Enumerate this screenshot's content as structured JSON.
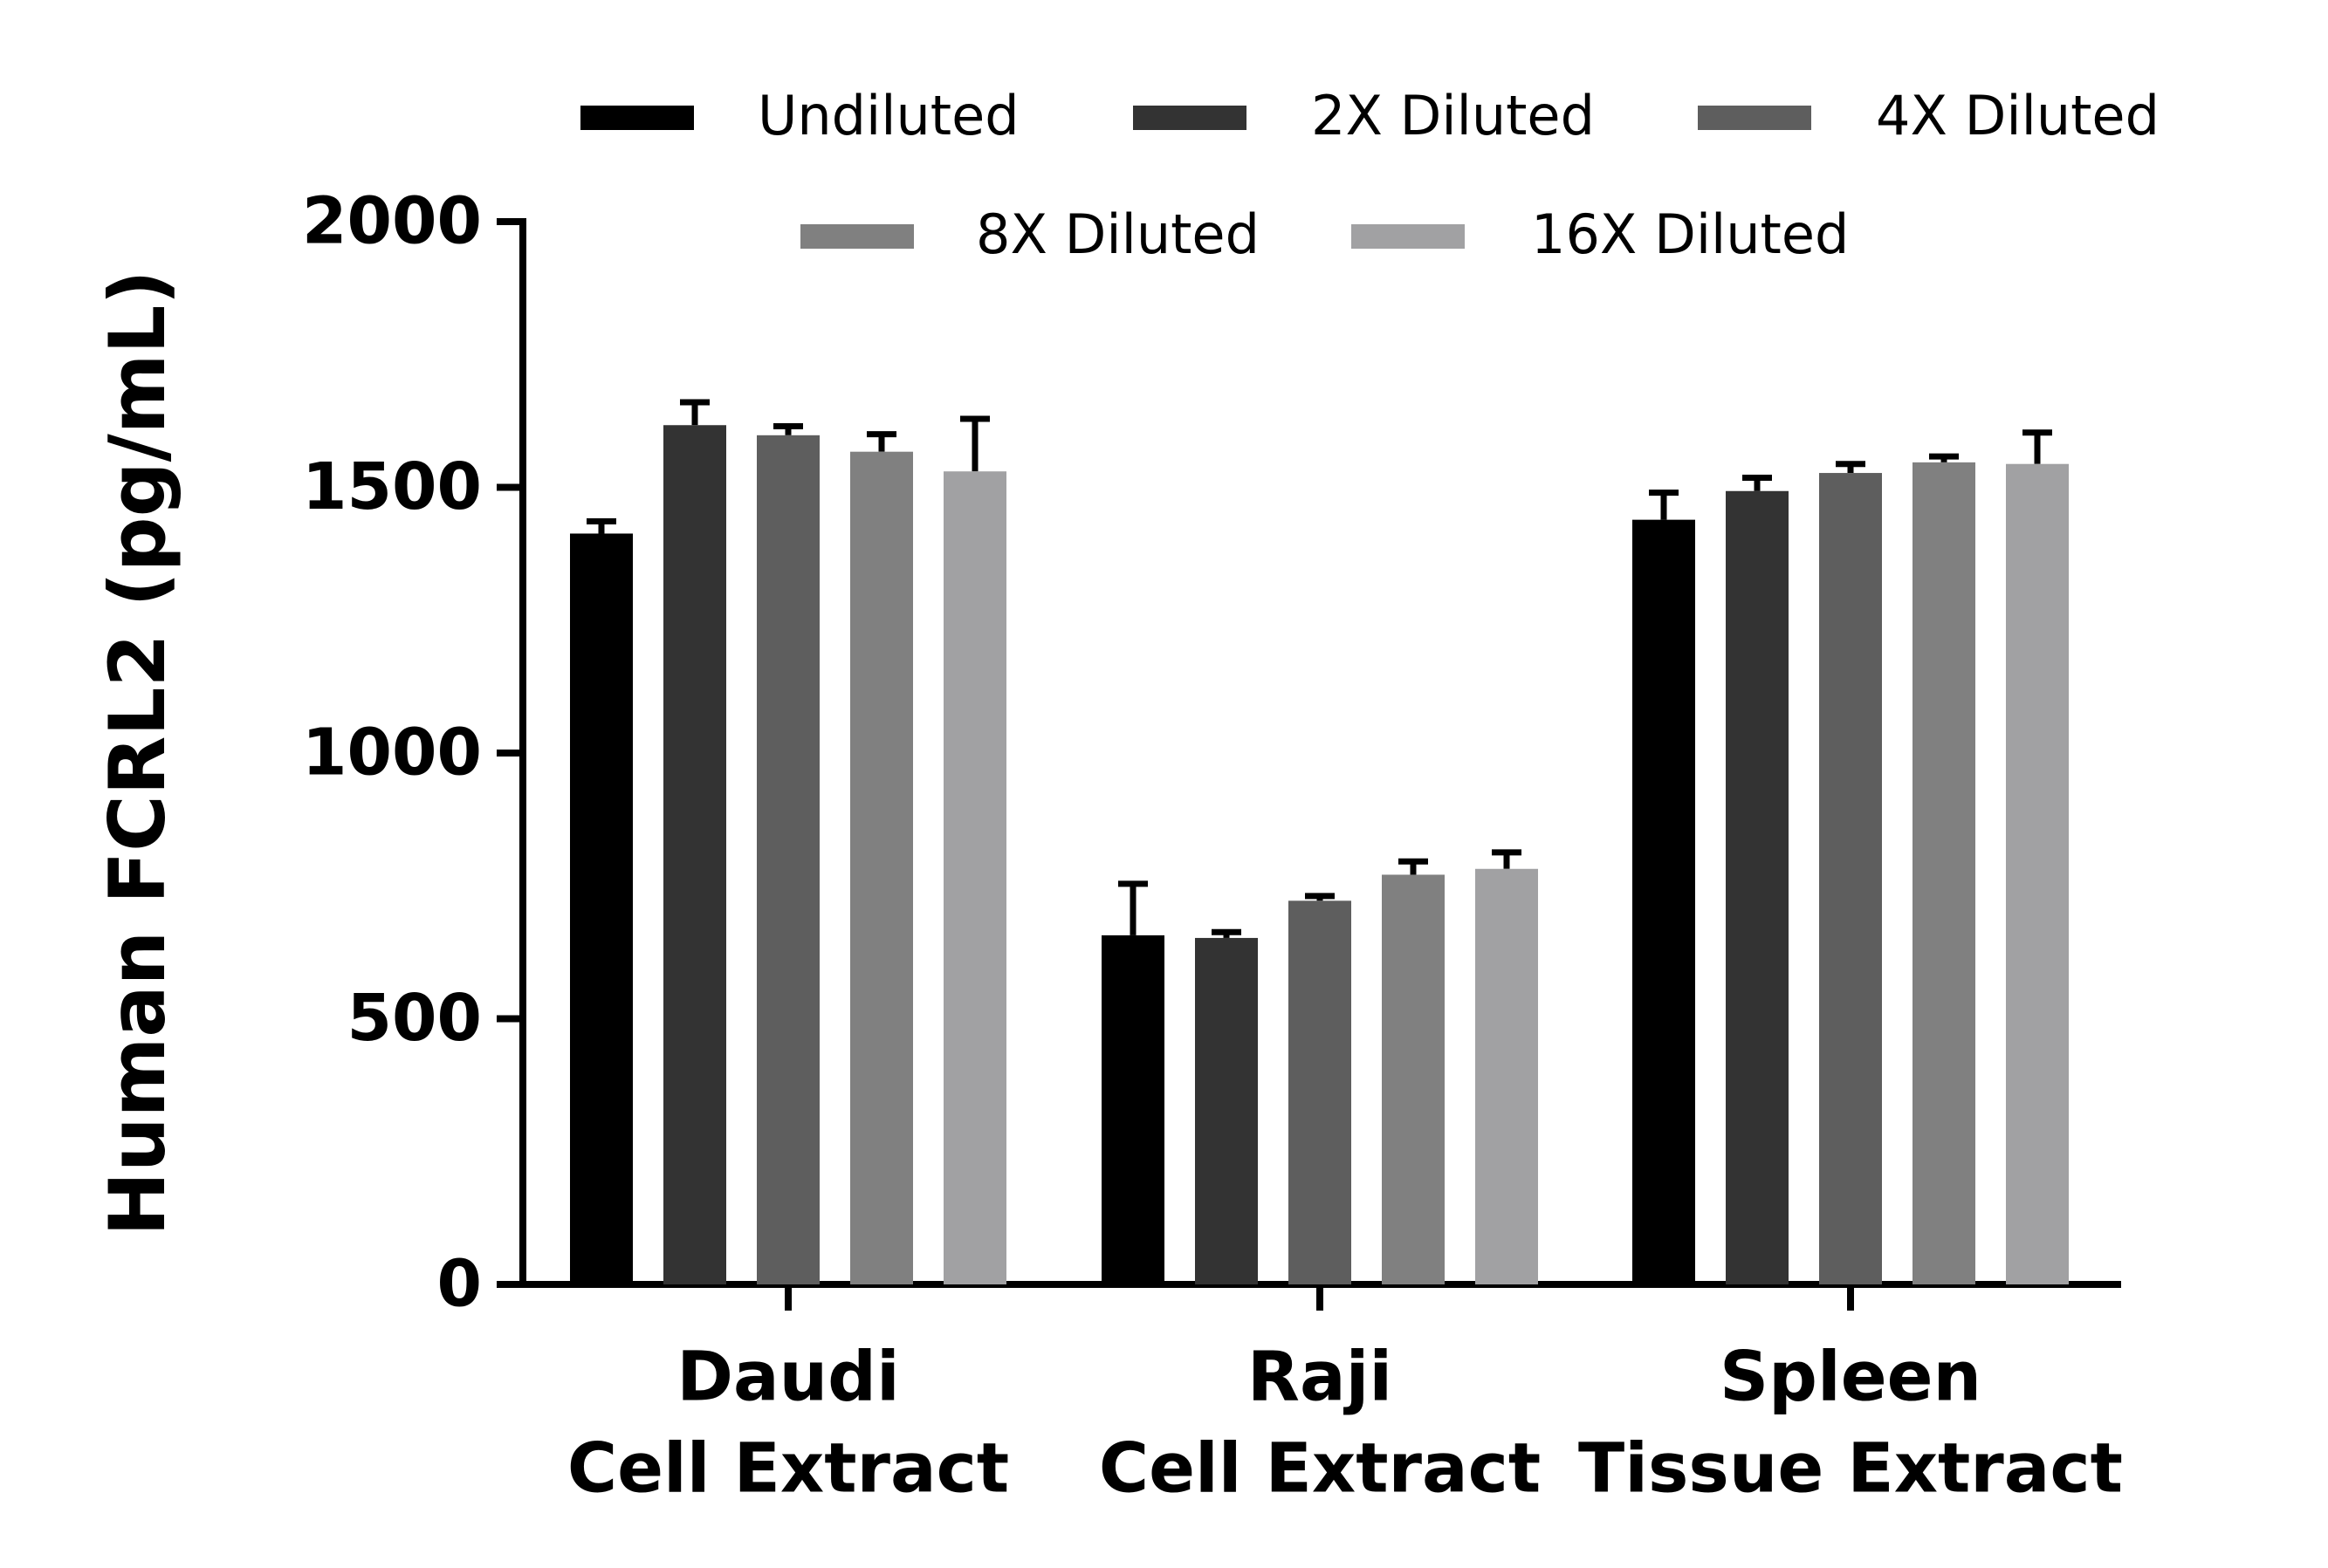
{
  "chart_data": {
    "type": "bar",
    "y_label": "Human FCRL2 (pg/mL)",
    "categories": [
      [
        "Daudi",
        "Cell Extract"
      ],
      [
        "Raji",
        "Cell Extract"
      ],
      [
        "Spleen",
        "Tissue Extract"
      ]
    ],
    "series": [
      {
        "name": "Undiluted",
        "color": "#000000",
        "values": [
          1413,
          657,
          1439
        ],
        "errors": [
          23,
          97,
          51
        ]
      },
      {
        "name": "2X Diluted",
        "color": "#333333",
        "values": [
          1617,
          652,
          1493
        ],
        "errors": [
          43,
          11,
          25
        ]
      },
      {
        "name": "4X Diluted",
        "color": "#5e5e5e",
        "values": [
          1598,
          722,
          1527
        ],
        "errors": [
          17,
          9,
          17
        ]
      },
      {
        "name": "8X Diluted",
        "color": "#808080",
        "values": [
          1567,
          771,
          1547
        ],
        "errors": [
          33,
          25,
          11
        ]
      },
      {
        "name": "16X Diluted",
        "color": "#a1a1a3",
        "values": [
          1530,
          782,
          1544
        ],
        "errors": [
          99,
          31,
          59
        ]
      }
    ],
    "ylim": [
      0,
      2000
    ],
    "yticks": [
      0,
      500,
      1000,
      1500,
      2000
    ],
    "grid": false
  }
}
